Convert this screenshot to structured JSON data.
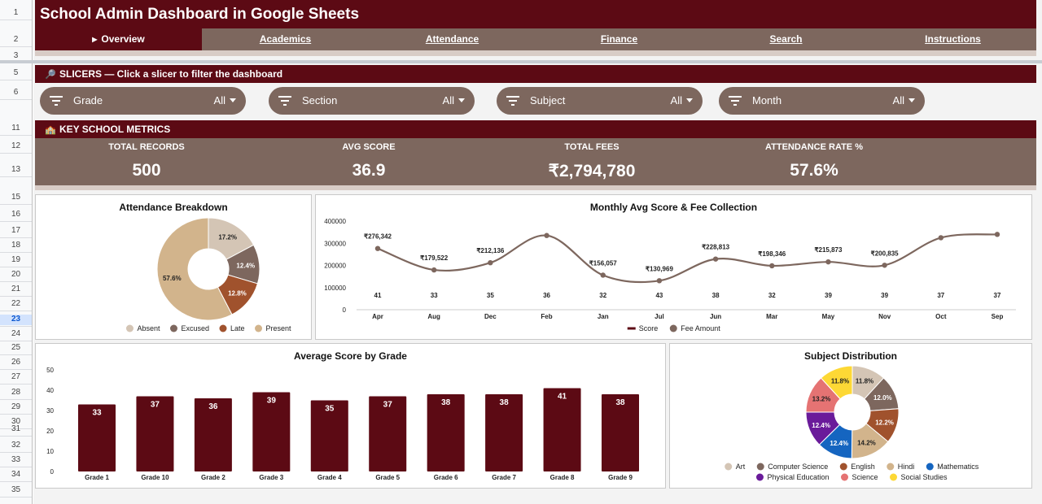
{
  "title": "School Admin Dashboard in Google Sheets",
  "nav": {
    "tabs": [
      {
        "label": "Overview",
        "active": true
      },
      {
        "label": "Academics"
      },
      {
        "label": "Attendance"
      },
      {
        "label": "Finance"
      },
      {
        "label": "Search"
      },
      {
        "label": "Instructions"
      }
    ]
  },
  "row_numbers": [
    "1",
    "2",
    "3",
    "5",
    "6",
    "11",
    "12",
    "13",
    "15",
    "16",
    "17",
    "18",
    "19",
    "20",
    "21",
    "22",
    "23",
    "24",
    "25",
    "26",
    "27",
    "28",
    "29",
    "30",
    "31",
    "32",
    "33",
    "34",
    "35"
  ],
  "active_row": "23",
  "slicers": {
    "heading": "SLICERS — Click a slicer to filter the dashboard",
    "items": [
      {
        "label": "Grade",
        "value": "All"
      },
      {
        "label": "Section",
        "value": "All"
      },
      {
        "label": "Subject",
        "value": "All"
      },
      {
        "label": "Month",
        "value": "All"
      }
    ]
  },
  "metrics": {
    "heading": "KEY SCHOOL METRICS",
    "items": [
      {
        "label": "TOTAL RECORDS",
        "value": "500"
      },
      {
        "label": "AVG SCORE",
        "value": "36.9"
      },
      {
        "label": "TOTAL FEES",
        "value": "₹2,794,780"
      },
      {
        "label": "ATTENDANCE RATE %",
        "value": "57.6%"
      }
    ]
  },
  "colors": {
    "maroon": "#5c0a14",
    "taupe": "#7d675e",
    "absent": "#d4c5b5",
    "excused": "#7d675e",
    "late": "#a0522d",
    "present": "#d2b48c"
  },
  "chart_data": [
    {
      "type": "pie",
      "title": "Attendance Breakdown",
      "donut": true,
      "categories": [
        "Absent",
        "Excused",
        "Late",
        "Present"
      ],
      "values": [
        17.2,
        12.4,
        12.8,
        57.6
      ],
      "labels": [
        "17.2%",
        "12.4%",
        "12.8%",
        "57.6%"
      ],
      "colors": [
        "#d4c5b5",
        "#7d675e",
        "#a0522d",
        "#d2b48c"
      ],
      "legend": "bottom"
    },
    {
      "type": "line",
      "title": "Monthly Avg Score & Fee Collection",
      "categories": [
        "Apr",
        "Aug",
        "Dec",
        "Feb",
        "Jan",
        "Jul",
        "Jun",
        "Mar",
        "May",
        "Nov",
        "Oct",
        "Sep"
      ],
      "ylim": [
        0,
        400000
      ],
      "yticks": [
        "400000",
        "300000",
        "200000",
        "100000",
        "0"
      ],
      "yticks_values": [
        400000,
        300000,
        200000,
        100000,
        0
      ],
      "series": [
        {
          "name": "Score",
          "values": [
            41,
            33,
            35,
            36,
            32,
            43,
            38,
            32,
            39,
            39,
            37,
            37
          ],
          "labels": [
            "41",
            "33",
            "35",
            "36",
            "32",
            "43",
            "38",
            "32",
            "39",
            "39",
            "37",
            "37"
          ],
          "color": "#5c0a14"
        },
        {
          "name": "Fee Amount",
          "values": [
            276342,
            179522,
            212136,
            335000,
            156057,
            130969,
            228813,
            198346,
            215873,
            200835,
            325000,
            340000
          ],
          "labels": [
            "₹276,342",
            "₹179,522",
            "₹212,136",
            "",
            "₹156,057",
            "₹130,969",
            "₹228,813",
            "₹198,346",
            "₹215,873",
            "₹200,835",
            "",
            ""
          ],
          "color": "#7d675e"
        }
      ],
      "legend": "bottom"
    },
    {
      "type": "bar",
      "title": "Average Score by Grade",
      "categories": [
        "Grade 1",
        "Grade 10",
        "Grade 2",
        "Grade 3",
        "Grade 4",
        "Grade 5",
        "Grade 6",
        "Grade 7",
        "Grade 8",
        "Grade 9"
      ],
      "values": [
        33,
        37,
        36,
        39,
        35,
        37,
        38,
        38,
        41,
        38
      ],
      "labels": [
        "33",
        "37",
        "36",
        "39",
        "35",
        "37",
        "38",
        "38",
        "41",
        "38"
      ],
      "ylim": [
        0,
        50
      ],
      "yticks": [
        "50",
        "40",
        "30",
        "20",
        "10",
        "0"
      ],
      "yticks_values": [
        50,
        40,
        30,
        20,
        10,
        0
      ],
      "color": "#5c0a14"
    },
    {
      "type": "pie",
      "title": "Subject Distribution",
      "donut": true,
      "categories": [
        "Art",
        "Computer Science",
        "English",
        "Hindi",
        "Mathematics",
        "Physical Education",
        "Science",
        "Social Studies"
      ],
      "values": [
        11.8,
        12.0,
        12.2,
        14.2,
        12.4,
        12.4,
        13.2,
        11.8
      ],
      "labels": [
        "11.8%",
        "12.0%",
        "12.2%",
        "14.2%",
        "12.4%",
        "12.4%",
        "13.2%",
        "11.8%"
      ],
      "colors": [
        "#d4c5b5",
        "#7d675e",
        "#a0522d",
        "#d2b48c",
        "#1565c0",
        "#6a1b9a",
        "#e57373",
        "#fdd835"
      ],
      "legend": "bottom"
    }
  ]
}
